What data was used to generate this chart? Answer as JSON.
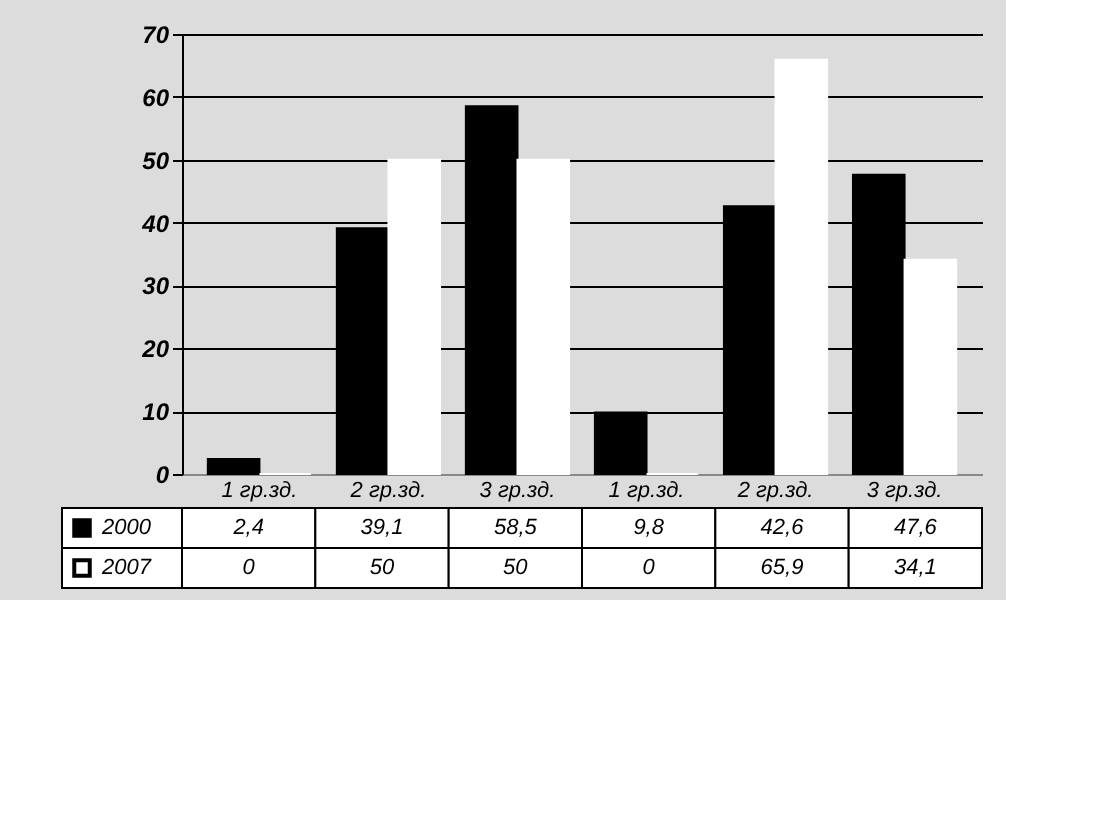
{
  "chart_data": {
    "type": "bar",
    "categories": [
      "1 гр.зд.",
      "2 гр.зд.",
      "3 гр.зд.",
      "1 гр.зд.",
      "2 гр.зд.",
      "3 гр.зд."
    ],
    "series": [
      {
        "name": "2000",
        "color": "#000000",
        "values": [
          2.4,
          39.1,
          58.5,
          9.8,
          42.6,
          47.6
        ],
        "value_labels": [
          "2,4",
          "39,1",
          "58,5",
          "9,8",
          "42,6",
          "47,6"
        ]
      },
      {
        "name": "2007",
        "color": "#ffffff",
        "values": [
          0,
          50,
          50,
          0,
          65.9,
          34.1
        ],
        "value_labels": [
          "0",
          "50",
          "50",
          "0",
          "65,9",
          "34,1"
        ]
      }
    ],
    "ylim": [
      0,
      70
    ],
    "yticks": [
      0,
      10,
      20,
      30,
      40,
      50,
      60,
      70
    ],
    "grid": "y",
    "legend": "bottom left"
  }
}
